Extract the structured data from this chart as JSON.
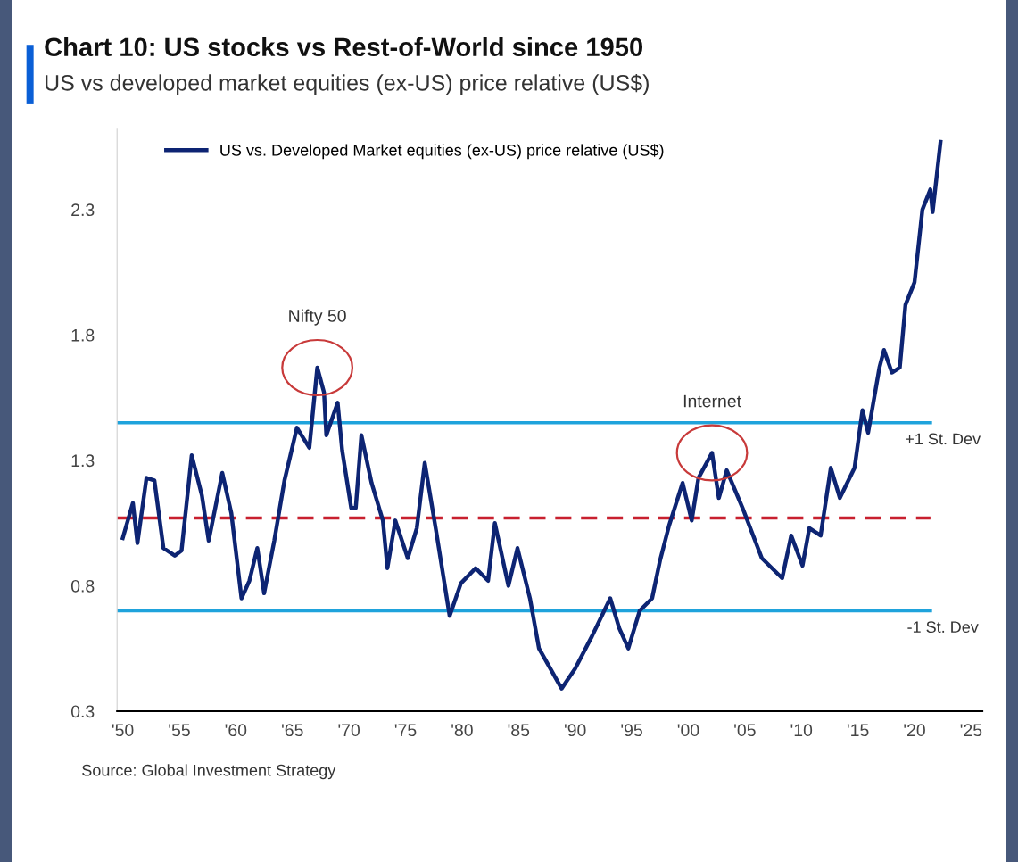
{
  "chart_data": {
    "type": "line",
    "title": "Chart 10: US stocks vs Rest-of-World since 1950",
    "subtitle": "US vs developed market equities (ex-US) price relative (US$)",
    "x": [
      1950,
      1950.9,
      1951.3,
      1952.1,
      1952.8,
      1953.6,
      1954.6,
      1955.2,
      1956.1,
      1957,
      1957.6,
      1958.8,
      1959.6,
      1960.5,
      1961.2,
      1961.9,
      1962.5,
      1963.4,
      1964.3,
      1965.4,
      1966.5,
      1967.2,
      1967.8,
      1968,
      1969,
      1969.4,
      1970.2,
      1970.6,
      1971.1,
      1972,
      1973,
      1973.4,
      1974.1,
      1975.2,
      1976,
      1976.7,
      1977.7,
      1978.9,
      1979.9,
      1981.2,
      1982.3,
      1982.9,
      1984.1,
      1984.9,
      1986,
      1986.8,
      1987.8,
      1988.8,
      1990,
      1991.5,
      1993.1,
      1993.9,
      1994.7,
      1995.7,
      1996.8,
      1997.5,
      1998.3,
      1999.5,
      2000.3,
      2000.9,
      2002.1,
      2002.7,
      2003.4,
      2004.8,
      2006.5,
      2008.3,
      2009.1,
      2010.1,
      2010.7,
      2011.7,
      2012.6,
      2013.4,
      2014.7,
      2015.4,
      2015.9,
      2016.9,
      2017.3,
      2018,
      2018.7,
      2019.2,
      2020,
      2020.7,
      2021.4,
      2021.6,
      2022.3
    ],
    "series": [
      {
        "name": "US vs. Developed Market equities (ex-US) price relative (US$)",
        "color": "#0d2473",
        "values": [
          0.99,
          1.13,
          0.97,
          1.23,
          1.22,
          0.95,
          0.92,
          0.94,
          1.32,
          1.16,
          0.98,
          1.25,
          1.09,
          0.75,
          0.82,
          0.95,
          0.77,
          0.98,
          1.22,
          1.43,
          1.35,
          1.67,
          1.57,
          1.4,
          1.53,
          1.34,
          1.11,
          1.11,
          1.4,
          1.21,
          1.06,
          0.87,
          1.06,
          0.91,
          1.03,
          1.29,
          1.02,
          0.68,
          0.81,
          0.87,
          0.82,
          1.05,
          0.8,
          0.95,
          0.75,
          0.55,
          0.47,
          0.39,
          0.47,
          0.6,
          0.75,
          0.63,
          0.55,
          0.7,
          0.75,
          0.9,
          1.04,
          1.21,
          1.06,
          1.23,
          1.33,
          1.15,
          1.26,
          1.11,
          0.91,
          0.83,
          1.0,
          0.88,
          1.03,
          1.0,
          1.27,
          1.15,
          1.27,
          1.5,
          1.41,
          1.67,
          1.74,
          1.65,
          1.67,
          1.92,
          2.01,
          2.3,
          2.38,
          2.29,
          2.57
        ]
      }
    ],
    "xlim": [
      1949.5,
      2026
    ],
    "xticks": [
      {
        "value": 1950,
        "label": "'50"
      },
      {
        "value": 1955,
        "label": "'55"
      },
      {
        "value": 1960,
        "label": "'60"
      },
      {
        "value": 1965,
        "label": "'65"
      },
      {
        "value": 1970,
        "label": "'70"
      },
      {
        "value": 1975,
        "label": "'75"
      },
      {
        "value": 1980,
        "label": "'80"
      },
      {
        "value": 1985,
        "label": "'85"
      },
      {
        "value": 1990,
        "label": "'90"
      },
      {
        "value": 1995,
        "label": "'95"
      },
      {
        "value": 2000,
        "label": "'00"
      },
      {
        "value": 2005,
        "label": "'05"
      },
      {
        "value": 2010,
        "label": "'10"
      },
      {
        "value": 2015,
        "label": "'15"
      },
      {
        "value": 2020,
        "label": "'20"
      },
      {
        "value": 2025,
        "label": "'25"
      }
    ],
    "ylim": [
      0.3,
      2.62
    ],
    "yticks": [
      0.3,
      0.8,
      1.3,
      1.8,
      2.3
    ],
    "ref_lines": [
      {
        "axis": "y",
        "value": 1.45,
        "label": "+1 St. Dev",
        "color": "#1fa3dc",
        "line_style": "solid"
      },
      {
        "axis": "y",
        "value": 1.07,
        "color": "#c8202f",
        "line_style": "dashed"
      },
      {
        "axis": "y",
        "value": 0.7,
        "label": "-1 St. Dev",
        "color": "#1fa3dc",
        "line_style": "solid"
      }
    ],
    "annotations": [
      {
        "text": "Nifty 50",
        "x": 1967.2,
        "y": 1.67
      },
      {
        "text": "Internet",
        "x": 2002.1,
        "y": 1.33
      },
      "Source: Global Investment Strategy"
    ],
    "grid": false,
    "legend": "top",
    "marker": "none",
    "line_style": "solid"
  }
}
